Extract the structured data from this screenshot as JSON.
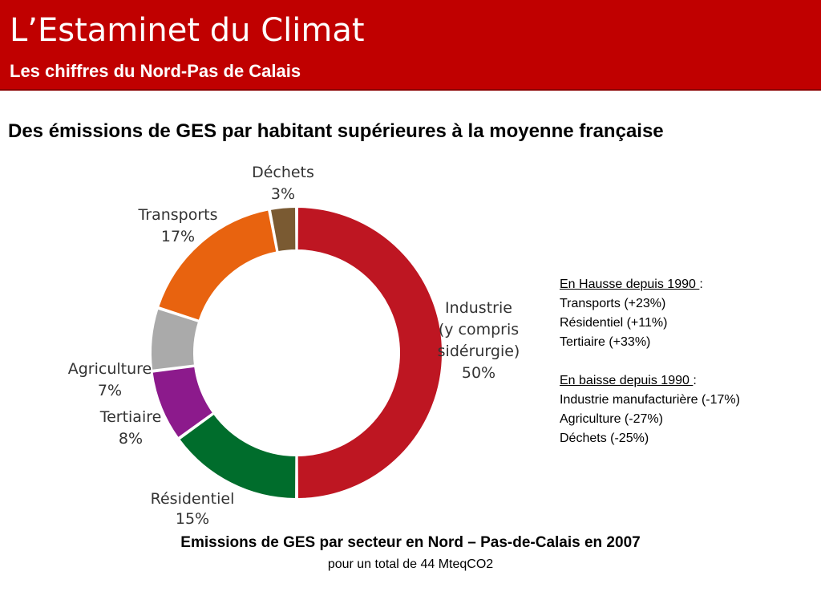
{
  "header": {
    "title": "L’Estaminet du Climat",
    "subtitle": "Les chiffres du Nord-Pas de Calais"
  },
  "headline": "Des émissions de GES par habitant supérieures à la moyenne française",
  "chart_data": {
    "type": "pie",
    "style": "donut",
    "slices": [
      {
        "label_lines": [
          "Industrie",
          "(y compris",
          "sidérurgie)",
          "50%"
        ],
        "value": 50,
        "color": "#be1622"
      },
      {
        "label_lines": [
          "Résidentiel",
          "15%"
        ],
        "value": 15,
        "color": "#006d2c"
      },
      {
        "label_lines": [
          "Tertiaire",
          "8%"
        ],
        "value": 8,
        "color": "#8c1a8c"
      },
      {
        "label_lines": [
          "Agriculture",
          "7%"
        ],
        "value": 7,
        "color": "#aaaaaa"
      },
      {
        "label_lines": [
          "Transports",
          "17%"
        ],
        "value": 17,
        "color": "#e8630f"
      },
      {
        "label_lines": [
          "Déchets",
          "3%"
        ],
        "value": 3,
        "color": "#7a5a32"
      }
    ],
    "caption": "Emissions de GES par secteur en Nord – Pas-de-Calais en 2007",
    "caption_sub": "pour un total de 44 MteqCO2"
  },
  "notes": {
    "hausse_heading": "En Hausse depuis 1990 ",
    "hausse_items": [
      "Transports (+23%)",
      "Résidentiel (+11%)",
      "Tertiaire (+33%)"
    ],
    "baisse_heading": "En baisse depuis 1990 ",
    "baisse_items": [
      "Industrie manufacturière (-17%)",
      "Agriculture (-27%)",
      "Déchets (-25%)"
    ],
    "colon": ":"
  }
}
